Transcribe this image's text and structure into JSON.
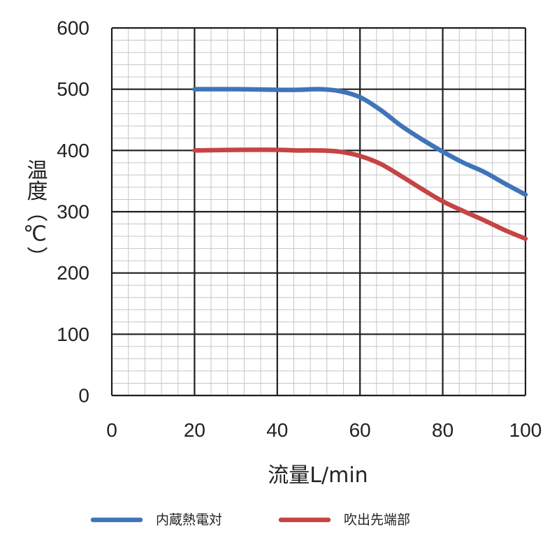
{
  "chart_data": {
    "type": "line",
    "xlabel": "流量L/min",
    "ylabel": "温度（℃）",
    "xlim": [
      0,
      100
    ],
    "ylim": [
      0,
      600
    ],
    "x_ticks": [
      "0",
      "20",
      "40",
      "60",
      "80",
      "100"
    ],
    "y_ticks": [
      "0",
      "100",
      "200",
      "300",
      "400",
      "500",
      "600"
    ],
    "grid": true,
    "legend_position": "bottom",
    "series": [
      {
        "name": "内蔵熱電対",
        "color": "#3f74b9",
        "points": [
          [
            20,
            500
          ],
          [
            30,
            500
          ],
          [
            40,
            499
          ],
          [
            45,
            499
          ],
          [
            50,
            500
          ],
          [
            55,
            497
          ],
          [
            60,
            487
          ],
          [
            65,
            466
          ],
          [
            70,
            440
          ],
          [
            75,
            418
          ],
          [
            80,
            398
          ],
          [
            85,
            380
          ],
          [
            90,
            365
          ],
          [
            95,
            346
          ],
          [
            100,
            328
          ]
        ]
      },
      {
        "name": "吹出先端部",
        "color": "#c54444",
        "points": [
          [
            20,
            400
          ],
          [
            30,
            401
          ],
          [
            40,
            401
          ],
          [
            45,
            400
          ],
          [
            50,
            400
          ],
          [
            55,
            398
          ],
          [
            60,
            391
          ],
          [
            65,
            378
          ],
          [
            70,
            358
          ],
          [
            75,
            337
          ],
          [
            80,
            317
          ],
          [
            85,
            301
          ],
          [
            90,
            286
          ],
          [
            95,
            270
          ],
          [
            100,
            256
          ]
        ]
      }
    ]
  }
}
